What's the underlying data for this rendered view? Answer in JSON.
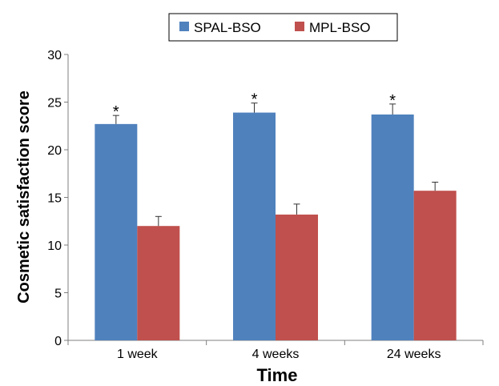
{
  "chart_data": {
    "type": "bar",
    "categories": [
      "1 week",
      "4 weeks",
      "24 weeks"
    ],
    "series": [
      {
        "name": "SPAL-BSO",
        "color": "#4f81bd",
        "values": [
          22.7,
          23.9,
          23.7
        ],
        "errors": [
          0.9,
          1.0,
          1.1
        ],
        "annotations": [
          "*",
          "*",
          "*"
        ]
      },
      {
        "name": "MPL-BSO",
        "color": "#c0504d",
        "values": [
          12.0,
          13.2,
          15.7
        ],
        "errors": [
          1.0,
          1.1,
          0.9
        ],
        "annotations": [
          "",
          "",
          ""
        ]
      }
    ],
    "xlabel": "Time",
    "ylabel": "Cosmetic satisfaction score",
    "ylim": [
      0,
      30
    ],
    "yticks": [
      0,
      5,
      10,
      15,
      20,
      25,
      30
    ],
    "legend_position": "top-center",
    "grid": false
  }
}
